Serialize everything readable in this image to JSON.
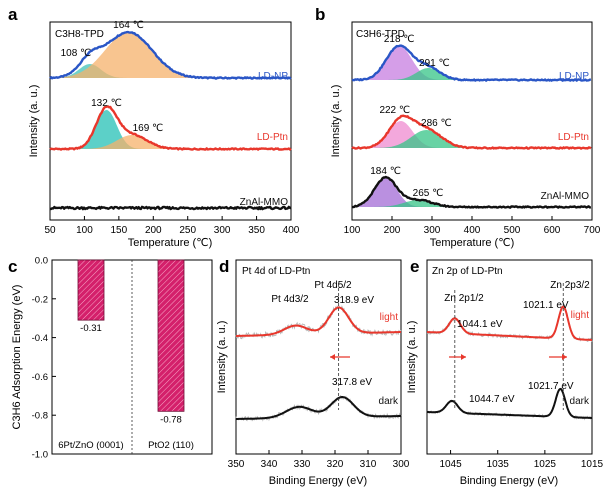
{
  "chart_data": [
    {
      "id": "a",
      "type": "line",
      "panel_label": "a",
      "inset_title": "C3H8-TPD",
      "xlabel": "Temperature (℃)",
      "ylabel": "Intensity (a. u.)",
      "xlim": [
        50,
        400
      ],
      "xticks": [
        50,
        100,
        150,
        200,
        250,
        300,
        350,
        400
      ],
      "series": [
        {
          "name": "LD-NP",
          "color": "#2a56c6",
          "peaks": [
            {
              "center": 108,
              "label": "108 ℃",
              "color": "#41c3b8"
            },
            {
              "center": 164,
              "label": "164 ℃",
              "color": "#f5b26b"
            }
          ]
        },
        {
          "name": "LD-Ptn",
          "color": "#e8372c",
          "peaks": [
            {
              "center": 132,
              "label": "132 ℃",
              "color": "#26c0b6"
            },
            {
              "center": 169,
              "label": "169 ℃",
              "color": "#f5b26b"
            }
          ]
        },
        {
          "name": "ZnAl-MMO",
          "color": "#111111",
          "peaks": []
        }
      ]
    },
    {
      "id": "b",
      "type": "line",
      "panel_label": "b",
      "inset_title": "C3H6-TPD",
      "xlabel": "Temperature (℃)",
      "ylabel": "Intensity (a. u.)",
      "xlim": [
        100,
        700
      ],
      "xticks": [
        100,
        200,
        300,
        400,
        500,
        600,
        700
      ],
      "series": [
        {
          "name": "LD-NP",
          "color": "#2a56c6",
          "peaks": [
            {
              "center": 218,
              "label": "218 ℃",
              "color": "#c77ee0"
            },
            {
              "center": 291,
              "label": "291 ℃",
              "color": "#35c487"
            }
          ]
        },
        {
          "name": "LD-Ptn",
          "color": "#e8372c",
          "peaks": [
            {
              "center": 222,
              "label": "222 ℃",
              "color": "#ef8bd0"
            },
            {
              "center": 286,
              "label": "286 ℃",
              "color": "#35c487"
            }
          ]
        },
        {
          "name": "ZnAl-MMO",
          "color": "#111111",
          "peaks": [
            {
              "center": 184,
              "label": "184 ℃",
              "color": "#a36bd6"
            },
            {
              "center": 265,
              "label": "265 ℃",
              "color": "#35c487"
            }
          ]
        }
      ]
    },
    {
      "id": "c",
      "type": "bar",
      "panel_label": "c",
      "ylabel": "C3H6 Adsorption Energy (eV)",
      "ylim": [
        -1.0,
        0.0
      ],
      "yticks": [
        0.0,
        -0.2,
        -0.4,
        -0.6,
        -0.8,
        -1.0
      ],
      "categories": [
        "6Pt/ZnO (0001)",
        "PtO2 (110)"
      ],
      "values": [
        -0.31,
        -0.78
      ],
      "value_labels": [
        "-0.31",
        "-0.78"
      ],
      "bar_color": "#d4206b"
    },
    {
      "id": "d",
      "type": "line",
      "panel_label": "d",
      "inset_title": "Pt 4d of LD-Ptn",
      "xlabel": "Binding Energy (eV)",
      "ylabel": "Intensity (a. u.)",
      "xlim": [
        350,
        300
      ],
      "xticks": [
        350,
        340,
        330,
        320,
        310,
        300
      ],
      "peak_labels": [
        "Pt 4d3/2",
        "Pt 4d5/2"
      ],
      "series": [
        {
          "name": "light",
          "color": "#e8372c",
          "peak_positions": [
            331.9,
            318.9
          ],
          "annotations": [
            "318.9 eV"
          ]
        },
        {
          "name": "dark",
          "color": "#111111",
          "peak_positions": [
            330.8,
            317.8
          ],
          "annotations": [
            "317.8 eV"
          ]
        }
      ]
    },
    {
      "id": "e",
      "type": "line",
      "panel_label": "e",
      "inset_title": "Zn 2p of LD-Ptn",
      "xlabel": "Binding Energy (eV)",
      "ylabel": "Intensity (a. u.)",
      "xlim": [
        1050,
        1015
      ],
      "xticks": [
        1045,
        1035,
        1025,
        1015
      ],
      "peak_labels": [
        "Zn 2p1/2",
        "Zn 2p3/2"
      ],
      "series": [
        {
          "name": "light",
          "color": "#e8372c",
          "peak_positions": [
            1044.1,
            1021.1
          ],
          "annotations": [
            "1044.1 eV",
            "1021.1 eV"
          ]
        },
        {
          "name": "dark",
          "color": "#111111",
          "peak_positions": [
            1044.7,
            1021.7
          ],
          "annotations": [
            "1044.7 eV",
            "1021.7 eV"
          ]
        }
      ]
    }
  ]
}
